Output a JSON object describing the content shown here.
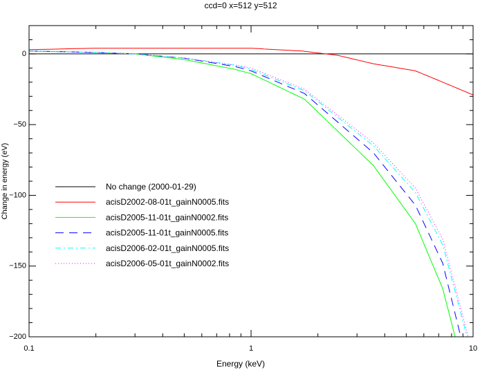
{
  "chart_data": {
    "type": "line",
    "title": "ccd=0 x=512 y=512",
    "xlabel": "Energy (keV)",
    "ylabel": "Change in energy (eV)",
    "xscale": "log",
    "xlim": [
      0.1,
      10
    ],
    "ylim": [
      -200,
      20
    ],
    "xticks": [
      {
        "v": 0.1,
        "label": "0.1"
      },
      {
        "v": 1,
        "label": "1"
      },
      {
        "v": 10,
        "label": "10"
      }
    ],
    "yticks": [
      {
        "v": 0,
        "label": "0"
      },
      {
        "v": -50,
        "label": "−50"
      },
      {
        "v": -100,
        "label": "−100"
      },
      {
        "v": -150,
        "label": "−150"
      },
      {
        "v": -200,
        "label": "−200"
      }
    ],
    "legend_position": "center-left",
    "series": [
      {
        "name": "No change (2000-01-29)",
        "color": "#000000",
        "dash": "solid",
        "x": [
          0.1,
          10
        ],
        "y": [
          0,
          0
        ]
      },
      {
        "name": "acisD2002-08-01t_gainN0005.fits",
        "color": "#ff0000",
        "dash": "solid",
        "x": [
          0.1,
          0.2,
          0.5,
          1.0,
          1.3,
          1.7,
          2.45,
          3.56,
          5.5,
          7.3,
          10
        ],
        "y": [
          3,
          4,
          4,
          4,
          3,
          2,
          -1,
          -7,
          -12,
          -20,
          -29
        ]
      },
      {
        "name": "acisD2005-11-01t_gainN0002.fits",
        "color": "#00ff00",
        "dash": "solid",
        "x": [
          0.1,
          0.2,
          0.3,
          0.5,
          0.85,
          1.0,
          1.74,
          3.56,
          5.5,
          7.3,
          8.3
        ],
        "y": [
          2,
          1,
          0,
          -4,
          -11,
          -14,
          -32,
          -79,
          -120,
          -166,
          -200
        ]
      },
      {
        "name": "acisD2005-11-01t_gainN0005.fits",
        "color": "#0000ff",
        "dash": "dashed",
        "x": [
          0.1,
          0.2,
          0.3,
          0.5,
          0.85,
          1.0,
          1.74,
          3.56,
          5.5,
          7.3,
          8.8
        ],
        "y": [
          2,
          1,
          0,
          -3,
          -9,
          -12,
          -28,
          -70,
          -107,
          -148,
          -200
        ]
      },
      {
        "name": "acisD2006-02-01t_gainN0005.fits",
        "color": "#00ffff",
        "dash": "dashdot",
        "x": [
          0.1,
          0.2,
          0.3,
          0.5,
          0.85,
          1.0,
          1.74,
          3.56,
          5.5,
          7.3,
          9.4
        ],
        "y": [
          2,
          1,
          0,
          -3,
          -8,
          -11,
          -26,
          -65,
          -98,
          -135,
          -200
        ]
      },
      {
        "name": "acisD2006-05-01t_gainN0002.fits",
        "color": "#ff00ff",
        "dash": "dotted",
        "x": [
          0.1,
          0.2,
          0.3,
          0.5,
          0.85,
          1.0,
          1.74,
          3.56,
          5.5,
          7.3,
          9.5
        ],
        "y": [
          2,
          1,
          0,
          -3,
          -8,
          -10,
          -25,
          -63,
          -95,
          -131,
          -200
        ]
      }
    ]
  }
}
